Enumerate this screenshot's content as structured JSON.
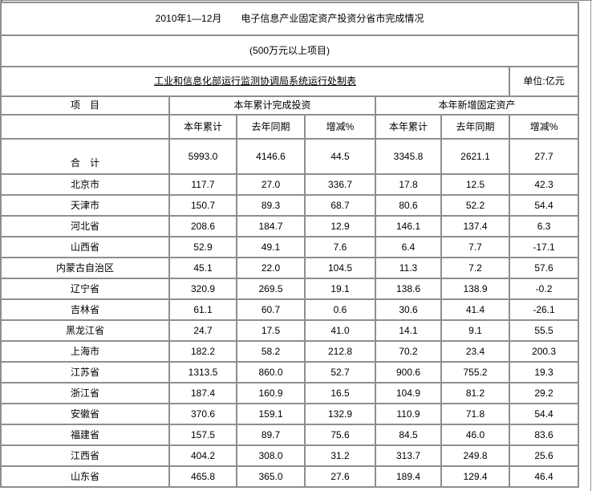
{
  "title": "2010年1—12月　　电子信息产业固定资产投资分省市完成情况",
  "subtitle": "(500万元以上项目)",
  "source": "工业和信息化部运行监测协调局系统运行处制表",
  "unit": "单位:亿元",
  "table": {
    "item_header": "项　目",
    "group_headers": [
      "本年累计完成投资",
      "本年新增固定资产"
    ],
    "sub_headers": [
      "本年累计",
      "去年同期",
      "增减%",
      "本年累计",
      "去年同期",
      "增减%"
    ],
    "rows": [
      {
        "name": "合　计",
        "values": [
          "5993.0",
          "4146.6",
          "44.5",
          "3345.8",
          "2621.1",
          "27.7"
        ],
        "total": true
      },
      {
        "name": "北京市",
        "values": [
          "117.7",
          "27.0",
          "336.7",
          "17.8",
          "12.5",
          "42.3"
        ]
      },
      {
        "name": "天津市",
        "values": [
          "150.7",
          "89.3",
          "68.7",
          "80.6",
          "52.2",
          "54.4"
        ]
      },
      {
        "name": "河北省",
        "values": [
          "208.6",
          "184.7",
          "12.9",
          "146.1",
          "137.4",
          "6.3"
        ]
      },
      {
        "name": "山西省",
        "values": [
          "52.9",
          "49.1",
          "7.6",
          "6.4",
          "7.7",
          "-17.1"
        ]
      },
      {
        "name": "内蒙古自治区",
        "values": [
          "45.1",
          "22.0",
          "104.5",
          "11.3",
          "7.2",
          "57.6"
        ]
      },
      {
        "name": "辽宁省",
        "values": [
          "320.9",
          "269.5",
          "19.1",
          "138.6",
          "138.9",
          "-0.2"
        ]
      },
      {
        "name": "吉林省",
        "values": [
          "61.1",
          "60.7",
          "0.6",
          "30.6",
          "41.4",
          "-26.1"
        ]
      },
      {
        "name": "黑龙江省",
        "values": [
          "24.7",
          "17.5",
          "41.0",
          "14.1",
          "9.1",
          "55.5"
        ]
      },
      {
        "name": "上海市",
        "values": [
          "182.2",
          "58.2",
          "212.8",
          "70.2",
          "23.4",
          "200.3"
        ]
      },
      {
        "name": "江苏省",
        "values": [
          "1313.5",
          "860.0",
          "52.7",
          "900.6",
          "755.2",
          "19.3"
        ]
      },
      {
        "name": "浙江省",
        "values": [
          "187.4",
          "160.9",
          "16.5",
          "104.9",
          "81.2",
          "29.2"
        ]
      },
      {
        "name": "安徽省",
        "values": [
          "370.6",
          "159.1",
          "132.9",
          "110.9",
          "71.8",
          "54.4"
        ]
      },
      {
        "name": "福建省",
        "values": [
          "157.5",
          "89.7",
          "75.6",
          "84.5",
          "46.0",
          "83.6"
        ]
      },
      {
        "name": "江西省",
        "values": [
          "404.2",
          "308.0",
          "31.2",
          "313.7",
          "249.8",
          "25.6"
        ]
      },
      {
        "name": "山东省",
        "values": [
          "465.8",
          "365.0",
          "27.6",
          "189.4",
          "129.4",
          "46.4"
        ]
      }
    ]
  },
  "colors": {
    "grid": "#8e8e8e",
    "text": "#000000",
    "background": "#ffffff"
  }
}
